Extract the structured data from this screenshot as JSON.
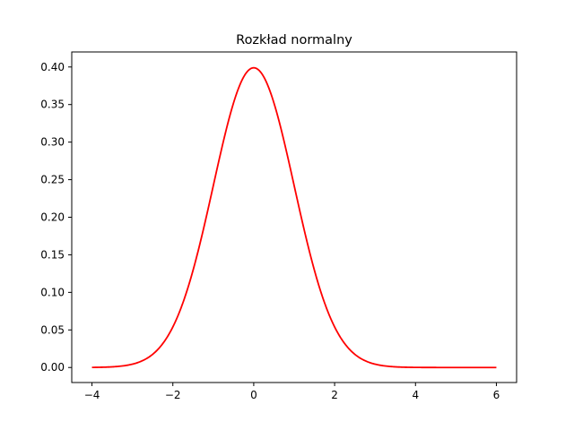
{
  "chart_data": {
    "type": "line",
    "title": "Rozkład normalny",
    "xlabel": "",
    "ylabel": "",
    "xlim": [
      -4.5,
      6.5
    ],
    "ylim": [
      -0.02,
      0.42
    ],
    "x_ticks": [
      -4,
      -2,
      0,
      2,
      4,
      6
    ],
    "x_tick_labels": [
      "−4",
      "−2",
      "0",
      "2",
      "4",
      "6"
    ],
    "y_ticks": [
      0.0,
      0.05,
      0.1,
      0.15,
      0.2,
      0.25,
      0.3,
      0.35,
      0.4
    ],
    "y_tick_labels": [
      "0.00",
      "0.05",
      "0.10",
      "0.15",
      "0.20",
      "0.25",
      "0.30",
      "0.35",
      "0.40"
    ],
    "grid": false,
    "legend": "none",
    "series": [
      {
        "color": "#ff0000",
        "distribution": "normal",
        "mean": 0,
        "std": 1,
        "x_range": [
          -4,
          6
        ]
      }
    ]
  }
}
